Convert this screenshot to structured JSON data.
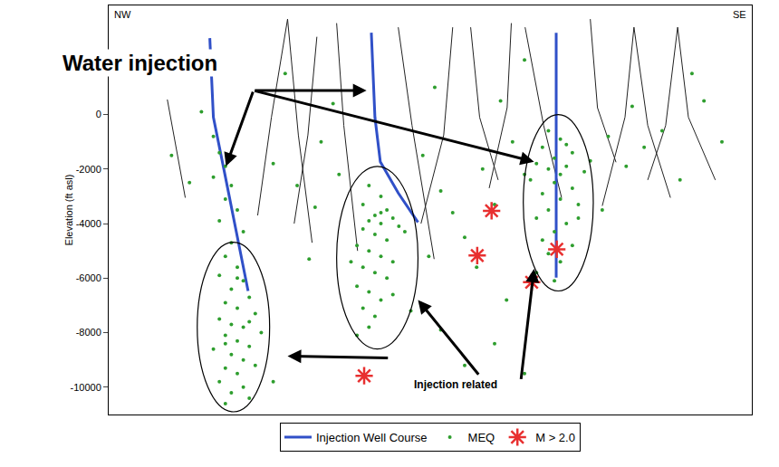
{
  "chart_data": {
    "type": "scatter",
    "y_label": "Elevation (ft asl)",
    "xlim": [
      -7.5,
      100
    ],
    "ylim": [
      -11000,
      4000
    ],
    "yticks": [
      0,
      -2000,
      -4000,
      -6000,
      -8000,
      -10000
    ],
    "tick_labels": "y",
    "grid": false,
    "legend": "bottom",
    "corner_labels": {
      "left": "NW",
      "right": "SE"
    },
    "series": [
      {
        "type": "line",
        "color": "#222222",
        "line_style": "solid",
        "lines": [
          {
            "x": [
              2.3,
              5.3
            ],
            "y": [
              550,
              -3050
            ]
          },
          {
            "x": [
              22.4,
              19.7,
              17.4
            ],
            "y": [
              3500,
              -100,
              -3700
            ]
          },
          {
            "x": [
              22.4,
              24.2,
              26.5
            ],
            "y": [
              3500,
              -750,
              -4700
            ]
          },
          {
            "x": [
              27.3,
              25.8,
              23.5
            ],
            "y": [
              2850,
              -750,
              -4000
            ]
          },
          {
            "x": [
              30.6,
              31.8,
              34.1
            ],
            "y": [
              3350,
              -400,
              -5000
            ]
          },
          {
            "x": [
              40.9,
              43.2,
              46.9
            ],
            "y": [
              3200,
              -400,
              -5300
            ]
          },
          {
            "x": [
              50.0,
              48.5,
              44.7
            ],
            "y": [
              3200,
              -750,
              -4000
            ]
          },
          {
            "x": [
              53.0,
              54.5,
              57.6
            ],
            "y": [
              3200,
              -100,
              -2400
            ]
          },
          {
            "x": [
              59.8,
              59.1,
              56.1
            ],
            "y": [
              3350,
              250,
              -2700
            ]
          },
          {
            "x": [
              62.1,
              65.2,
              68.2
            ],
            "y": [
              3200,
              -400,
              -3050
            ]
          },
          {
            "x": [
              73.0,
              74.2,
              77.3
            ],
            "y": [
              3500,
              250,
              -1750
            ]
          },
          {
            "x": [
              80.3,
              78.8,
              75.0
            ],
            "y": [
              3200,
              -100,
              -3350
            ]
          },
          {
            "x": [
              80.3,
              82.6,
              86.4
            ],
            "y": [
              3200,
              -400,
              -3050
            ]
          },
          {
            "x": [
              87.6,
              89.4,
              93.9
            ],
            "y": [
              3200,
              -100,
              -2400
            ]
          },
          {
            "x": [
              87.6,
              85.6,
              82.6
            ],
            "y": [
              3200,
              -400,
              -2400
            ]
          }
        ]
      },
      {
        "name": "Injection Well Course",
        "type": "line",
        "color": "#3050c8",
        "line_style": "solid",
        "lines": [
          {
            "x": [
              9.4,
              10.0,
              11.8,
              13.9,
              15.8
            ],
            "y": [
              2800,
              -100,
              -2060,
              -4350,
              -6470
            ]
          },
          {
            "x": [
              36.4,
              37.0,
              37.9,
              40.9,
              44.2
            ],
            "y": [
              3000,
              -100,
              -1730,
              -2880,
              -3950
            ]
          },
          {
            "x": [
              67.3,
              67.3
            ],
            "y": [
              3000,
              -5980
            ]
          }
        ]
      },
      {
        "name": "MEQ",
        "type": "scatter",
        "color": "#2e9e2e",
        "marker": "circle",
        "x": [
          12,
          14,
          11,
          15,
          13,
          16,
          12,
          14,
          17,
          11,
          13,
          15,
          18,
          12,
          14,
          16,
          10,
          13,
          15,
          17,
          12,
          14,
          11,
          15,
          13,
          16,
          12,
          14,
          16,
          12,
          10,
          11,
          12,
          10,
          13,
          12,
          14,
          11,
          15,
          13,
          36,
          38,
          35,
          39,
          37,
          40,
          36,
          38,
          41,
          35,
          37,
          39,
          34,
          36,
          38,
          40,
          35,
          37,
          39,
          34,
          36,
          38,
          35,
          37,
          36,
          34,
          38,
          42,
          33,
          40,
          66,
          68,
          65,
          70,
          67,
          64,
          69,
          66,
          72,
          68,
          63,
          67,
          70,
          65,
          68,
          71,
          66,
          64,
          69,
          67,
          65,
          70,
          66,
          68,
          64,
          67,
          73,
          62,
          71,
          69,
          3,
          6,
          20,
          24,
          28,
          27,
          31,
          45,
          48,
          50,
          52,
          46,
          55,
          57,
          54,
          59,
          60,
          76,
          79,
          82,
          85,
          88,
          92,
          95,
          90,
          80,
          75,
          62,
          58,
          47,
          30,
          22,
          8,
          43,
          52,
          62,
          57,
          48,
          26,
          20
        ],
        "y": [
          -5200,
          -5600,
          -5900,
          -6100,
          -6400,
          -6700,
          -6900,
          -7100,
          -7300,
          -7500,
          -7700,
          -7800,
          -8000,
          -8100,
          -8300,
          -8500,
          -8600,
          -8800,
          -9000,
          -9200,
          -9300,
          -9500,
          -9800,
          -10000,
          -10200,
          -10400,
          -10600,
          -6000,
          -7600,
          -8400,
          -800,
          -1400,
          -1900,
          -2300,
          -2600,
          -3100,
          -3500,
          -3900,
          -4300,
          -4700,
          -2600,
          -3000,
          -3300,
          -3500,
          -3700,
          -3800,
          -3900,
          -4000,
          -4100,
          -4200,
          -4400,
          -4600,
          -4800,
          -5000,
          -5200,
          -5400,
          -5600,
          -5800,
          -6000,
          -6300,
          -6500,
          -6800,
          -7100,
          -7400,
          -7800,
          -8100,
          -3600,
          -4300,
          -5400,
          -6600,
          -600,
          -900,
          -1200,
          -1400,
          -1600,
          -1800,
          -1900,
          -2000,
          -2100,
          -2200,
          -2400,
          -2500,
          -2700,
          -2900,
          -3100,
          -3300,
          -3500,
          -3800,
          -4000,
          -4300,
          -4600,
          -4800,
          -5100,
          -5400,
          -5800,
          -6100,
          -1700,
          -2200,
          -3800,
          -1100,
          -1500,
          -2500,
          -1800,
          -2600,
          -1000,
          -3400,
          -2200,
          -1500,
          -2800,
          -3600,
          -4500,
          -5200,
          -2000,
          -3300,
          -5600,
          -6800,
          -1000,
          -800,
          -1900,
          -1200,
          -600,
          -2400,
          500,
          -1000,
          1500,
          300,
          -3500,
          2000,
          500,
          1000,
          400,
          1500,
          100,
          -7200,
          -9200,
          -9500,
          -8400,
          -7900,
          -5300,
          -9800
        ]
      },
      {
        "name": "M > 2.0",
        "type": "scatter",
        "color": "#e83030",
        "marker": "asterisk",
        "x": [
          56.5,
          54.1,
          63.2,
          67.4,
          35.2
        ],
        "y": [
          -3530,
          -5170,
          -6150,
          -4940,
          -9580
        ]
      }
    ],
    "regions": [
      {
        "x0": 7.3,
        "x1": 19.4,
        "y0": -10900,
        "y1": -4680
      },
      {
        "x0": 30.6,
        "x1": 44.2,
        "y0": -8600,
        "y1": -1900
      },
      {
        "x0": 61.8,
        "x1": 73.5,
        "y0": -6470,
        "y1": 0
      }
    ],
    "annotations": [
      {
        "text": "Water injection",
        "x": -2.3,
        "y": 1900,
        "arrows": [
          {
            "from": [
              16.7,
              880
            ],
            "to": [
              12.1,
              -1900
            ]
          },
          {
            "from": [
              16.7,
              880
            ],
            "to": [
              35.6,
              880
            ]
          },
          {
            "from": [
              16.7,
              880
            ],
            "to": [
              63.6,
              -1730
            ]
          }
        ]
      },
      {
        "text": "Injection related",
        "x": 50.5,
        "y": -9900,
        "arrows": [
          {
            "from": [
              39.4,
              -8930
            ],
            "to": [
              22.4,
              -8860
            ]
          },
          {
            "from": [
              54.5,
              -9580
            ],
            "to": [
              44.2,
              -6800
            ]
          },
          {
            "from": [
              61.4,
              -9750
            ],
            "to": [
              63.6,
              -5660
            ]
          }
        ]
      }
    ]
  }
}
